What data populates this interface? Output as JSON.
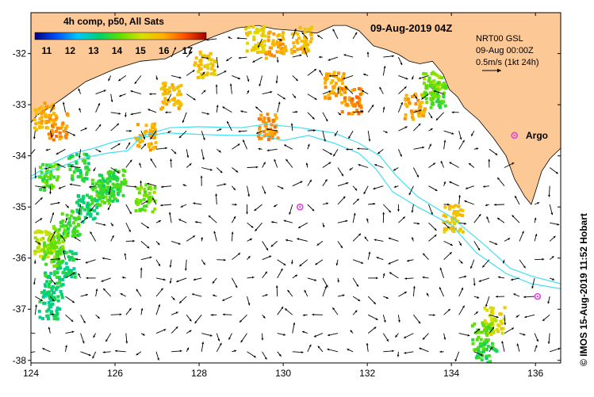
{
  "header": {
    "date_label": "09-Aug-2019 04Z",
    "legend_title": "4h comp, p50, All Sats"
  },
  "colorbar": {
    "ticks": [
      "11",
      "12",
      "13",
      "14",
      "15",
      "16",
      "17"
    ],
    "min": 10.5,
    "max": 17.8,
    "colors": [
      "#000080",
      "#0050ff",
      "#00c8ff",
      "#00d070",
      "#60e000",
      "#d8e000",
      "#ffb000",
      "#ff5000",
      "#a00000"
    ]
  },
  "info": {
    "line1": "NRT00 GSL",
    "line2": "09-Aug 00:00Z",
    "line3": "0.5m/s (1kt 24h)"
  },
  "axes": {
    "x_ticks": [
      "124",
      "126",
      "128",
      "130",
      "132",
      "134",
      "136"
    ],
    "y_ticks": [
      "-32",
      "-33",
      "-34",
      "-35",
      "-36",
      "-37",
      "-38"
    ],
    "lon_range": [
      124,
      136.6
    ],
    "lat_range": [
      -31.2,
      -38.05
    ]
  },
  "markers": {
    "argo_label": "Argo",
    "color": "#e040e0",
    "floats": [
      {
        "lon": 135.5,
        "lat": -33.6,
        "labeled": true
      },
      {
        "lon": 130.4,
        "lat": -35.0,
        "labeled": false
      },
      {
        "lon": 136.05,
        "lat": -36.75,
        "labeled": false
      }
    ]
  },
  "credit": "© IMOS 15-Aug-2019 11:52 Hobart",
  "colors": {
    "land": "#fcc896",
    "ocean": "#ffffff",
    "contour": "#40e0f0",
    "arrow": "#000000"
  },
  "map_data": {
    "sst_patches": [
      {
        "lon": 124.3,
        "lat": -33.2,
        "v": 15.9
      },
      {
        "lon": 124.6,
        "lat": -33.4,
        "v": 16.2
      },
      {
        "lon": 129.3,
        "lat": -31.7,
        "v": 15.4
      },
      {
        "lon": 129.8,
        "lat": -31.8,
        "v": 16.1
      },
      {
        "lon": 130.4,
        "lat": -31.7,
        "v": 15.8
      },
      {
        "lon": 131.2,
        "lat": -32.6,
        "v": 16.0
      },
      {
        "lon": 131.6,
        "lat": -32.9,
        "v": 16.4
      },
      {
        "lon": 133.1,
        "lat": -33.0,
        "v": 16.0
      },
      {
        "lon": 133.5,
        "lat": -32.6,
        "v": 14.4
      },
      {
        "lon": 133.6,
        "lat": -32.8,
        "v": 14.0
      },
      {
        "lon": 127.3,
        "lat": -32.8,
        "v": 15.8
      },
      {
        "lon": 128.1,
        "lat": -32.2,
        "v": 15.6
      },
      {
        "lon": 126.7,
        "lat": -33.6,
        "v": 15.9
      },
      {
        "lon": 129.6,
        "lat": -33.4,
        "v": 16.3
      },
      {
        "lon": 125.6,
        "lat": -34.7,
        "v": 14.0
      },
      {
        "lon": 125.8,
        "lat": -34.6,
        "v": 13.6
      },
      {
        "lon": 125.3,
        "lat": -35.0,
        "v": 13.3
      },
      {
        "lon": 124.9,
        "lat": -35.3,
        "v": 13.7
      },
      {
        "lon": 124.6,
        "lat": -35.6,
        "v": 14.3
      },
      {
        "lon": 124.8,
        "lat": -36.1,
        "v": 13.2
      },
      {
        "lon": 124.5,
        "lat": -36.5,
        "v": 13.4
      },
      {
        "lon": 124.3,
        "lat": -35.7,
        "v": 14.8
      },
      {
        "lon": 124.5,
        "lat": -35.9,
        "v": 14.1
      },
      {
        "lon": 124.4,
        "lat": -34.4,
        "v": 14.0
      },
      {
        "lon": 125.1,
        "lat": -34.2,
        "v": 13.6
      },
      {
        "lon": 124.4,
        "lat": -36.9,
        "v": 13.2
      },
      {
        "lon": 126.0,
        "lat": -34.5,
        "v": 13.8
      },
      {
        "lon": 126.7,
        "lat": -34.8,
        "v": 14.2
      },
      {
        "lon": 135.0,
        "lat": -37.2,
        "v": 15.2
      },
      {
        "lon": 134.7,
        "lat": -37.5,
        "v": 14.0
      },
      {
        "lon": 134.8,
        "lat": -37.9,
        "v": 13.6
      },
      {
        "lon": 134.0,
        "lat": -35.2,
        "v": 15.6
      }
    ]
  }
}
